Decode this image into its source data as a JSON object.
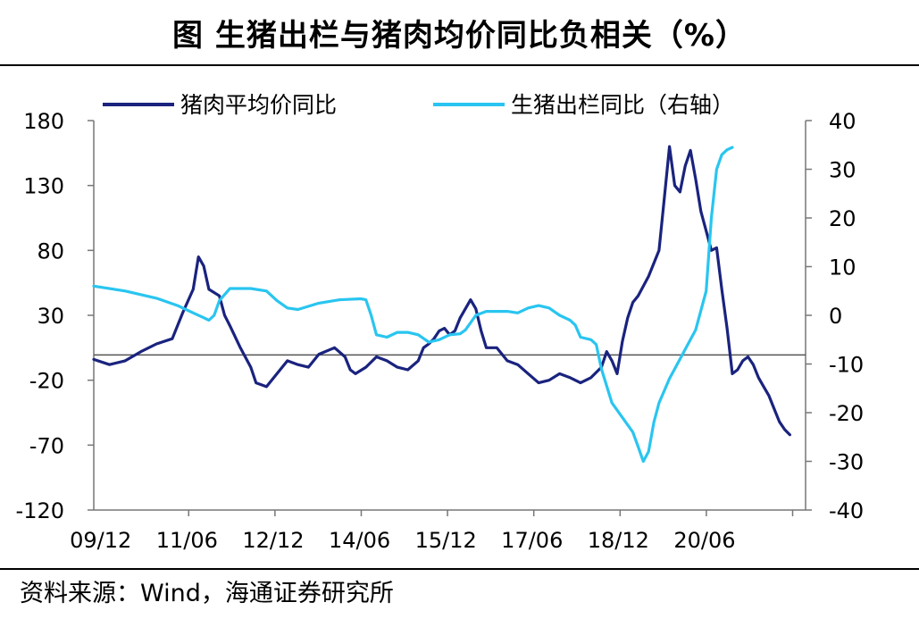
{
  "title": "图  生猪出栏与猪肉均价同比负相关（%）",
  "source": "资料来源：Wind，海通证券研究所",
  "chart_data": {
    "type": "line",
    "x_tick_labels": [
      "09/12",
      "11/06",
      "12/12",
      "14/06",
      "15/12",
      "17/06",
      "18/12",
      "20/06"
    ],
    "left_axis": {
      "ylim": [
        -120,
        180
      ],
      "ticks": [
        "180",
        "130",
        "80",
        "30",
        "-20",
        "-70",
        "-120"
      ]
    },
    "right_axis": {
      "ylim": [
        -40,
        40
      ],
      "ticks": [
        "40",
        "30",
        "20",
        "10",
        "0",
        "-10",
        "-20",
        "-30",
        "-40"
      ]
    },
    "reference_line": {
      "axis": "left",
      "value": -0.5
    },
    "series": [
      {
        "name": "猪肉平均价同比",
        "axis": "left",
        "color": "#1a237e",
        "points": [
          [
            0,
            -4
          ],
          [
            3,
            -8
          ],
          [
            6,
            -5
          ],
          [
            9,
            2
          ],
          [
            12,
            8
          ],
          [
            15,
            12
          ],
          [
            17,
            32
          ],
          [
            19,
            50
          ],
          [
            20,
            75
          ],
          [
            21,
            68
          ],
          [
            22,
            50
          ],
          [
            24,
            45
          ],
          [
            25,
            30
          ],
          [
            26,
            22
          ],
          [
            28,
            5
          ],
          [
            30,
            -10
          ],
          [
            31,
            -22
          ],
          [
            33,
            -25
          ],
          [
            35,
            -15
          ],
          [
            37,
            -5
          ],
          [
            39,
            -8
          ],
          [
            41,
            -10
          ],
          [
            43,
            0
          ],
          [
            46,
            5
          ],
          [
            48,
            -2
          ],
          [
            49,
            -12
          ],
          [
            50,
            -15
          ],
          [
            52,
            -10
          ],
          [
            54,
            -2
          ],
          [
            56,
            -5
          ],
          [
            58,
            -10
          ],
          [
            60,
            -12
          ],
          [
            62,
            -5
          ],
          [
            63,
            5
          ],
          [
            64,
            8
          ],
          [
            65,
            12
          ],
          [
            66,
            18
          ],
          [
            67,
            20
          ],
          [
            68,
            15
          ],
          [
            69,
            18
          ],
          [
            70,
            28
          ],
          [
            71,
            35
          ],
          [
            72,
            42
          ],
          [
            73,
            35
          ],
          [
            74,
            18
          ],
          [
            75,
            5
          ],
          [
            77,
            5
          ],
          [
            79,
            -5
          ],
          [
            81,
            -8
          ],
          [
            83,
            -15
          ],
          [
            85,
            -22
          ],
          [
            87,
            -20
          ],
          [
            89,
            -15
          ],
          [
            91,
            -18
          ],
          [
            93,
            -22
          ],
          [
            95,
            -18
          ],
          [
            97,
            -10
          ],
          [
            98,
            2
          ],
          [
            99,
            -5
          ],
          [
            100,
            -15
          ],
          [
            101,
            10
          ],
          [
            102,
            28
          ],
          [
            103,
            40
          ],
          [
            104,
            45
          ],
          [
            106,
            60
          ],
          [
            108,
            80
          ],
          [
            109,
            120
          ],
          [
            110,
            160
          ],
          [
            111,
            130
          ],
          [
            112,
            125
          ],
          [
            113,
            145
          ],
          [
            114,
            157
          ],
          [
            115,
            135
          ],
          [
            116,
            110
          ],
          [
            117,
            95
          ],
          [
            118,
            80
          ],
          [
            119,
            82
          ],
          [
            120,
            50
          ],
          [
            121,
            20
          ],
          [
            122,
            -15
          ],
          [
            123,
            -12
          ],
          [
            124,
            -5
          ],
          [
            125,
            -2
          ],
          [
            126,
            -8
          ],
          [
            127,
            -18
          ],
          [
            128,
            -25
          ],
          [
            129,
            -32
          ],
          [
            130,
            -42
          ],
          [
            131,
            -52
          ],
          [
            132,
            -58
          ],
          [
            133,
            -62
          ]
        ]
      },
      {
        "name": "生猪出栏同比（右轴）",
        "axis": "right",
        "color": "#29c5f0",
        "points": [
          [
            0,
            6
          ],
          [
            6,
            5
          ],
          [
            12,
            3.5
          ],
          [
            16,
            2
          ],
          [
            19,
            0.5
          ],
          [
            21,
            -0.5
          ],
          [
            22,
            -1
          ],
          [
            23,
            0
          ],
          [
            24,
            3
          ],
          [
            26,
            5.5
          ],
          [
            30,
            5.5
          ],
          [
            33,
            5
          ],
          [
            35,
            3
          ],
          [
            37,
            1.5
          ],
          [
            39,
            1.2
          ],
          [
            43,
            2.5
          ],
          [
            47,
            3.2
          ],
          [
            51,
            3.4
          ],
          [
            52,
            3.2
          ],
          [
            53,
            0
          ],
          [
            54,
            -4
          ],
          [
            56,
            -4.5
          ],
          [
            58,
            -3.5
          ],
          [
            60,
            -3.5
          ],
          [
            62,
            -4
          ],
          [
            64,
            -5.5
          ],
          [
            66,
            -5
          ],
          [
            68,
            -4
          ],
          [
            70,
            -3.8
          ],
          [
            71,
            -3
          ],
          [
            73,
            0
          ],
          [
            75,
            0.8
          ],
          [
            79,
            0.8
          ],
          [
            81,
            0.5
          ],
          [
            83,
            1.5
          ],
          [
            85,
            2
          ],
          [
            87,
            1.5
          ],
          [
            89,
            0
          ],
          [
            91,
            -1
          ],
          [
            92,
            -2
          ],
          [
            93,
            -4.5
          ],
          [
            95,
            -5
          ],
          [
            96,
            -6
          ],
          [
            97,
            -11
          ],
          [
            99,
            -18
          ],
          [
            101,
            -21
          ],
          [
            103,
            -24
          ],
          [
            104,
            -27
          ],
          [
            105,
            -30
          ],
          [
            106,
            -28
          ],
          [
            107,
            -22
          ],
          [
            108,
            -18
          ],
          [
            110,
            -13
          ],
          [
            112,
            -9
          ],
          [
            113,
            -7
          ],
          [
            115,
            -3
          ],
          [
            117,
            5
          ],
          [
            118,
            20
          ],
          [
            119,
            30
          ],
          [
            120,
            33
          ],
          [
            121,
            34
          ],
          [
            122,
            34.5
          ]
        ]
      }
    ]
  }
}
